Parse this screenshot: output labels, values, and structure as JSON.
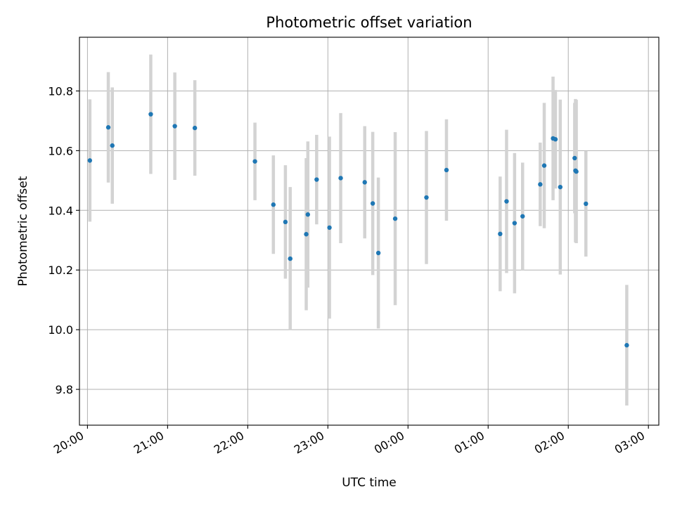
{
  "chart_data": {
    "type": "scatter",
    "title": "Photometric offset variation",
    "xlabel": "UTC time",
    "ylabel": "Photometric offset",
    "x_unit": "hours",
    "xlim": [
      19.9,
      27.13
    ],
    "ylim": [
      9.68,
      10.98
    ],
    "grid": true,
    "x_ticks": [
      {
        "x": 20,
        "label": "20:00"
      },
      {
        "x": 21,
        "label": "21:00"
      },
      {
        "x": 22,
        "label": "22:00"
      },
      {
        "x": 23,
        "label": "23:00"
      },
      {
        "x": 24,
        "label": "00:00"
      },
      {
        "x": 25,
        "label": "01:00"
      },
      {
        "x": 26,
        "label": "02:00"
      },
      {
        "x": 27,
        "label": "03:00"
      }
    ],
    "y_ticks": [
      {
        "y": 9.8,
        "label": "9.8"
      },
      {
        "y": 10.0,
        "label": "10.0"
      },
      {
        "y": 10.2,
        "label": "10.2"
      },
      {
        "y": 10.4,
        "label": "10.4"
      },
      {
        "y": 10.6,
        "label": "10.6"
      },
      {
        "y": 10.8,
        "label": "10.8"
      }
    ],
    "point_color": "#1f77b4",
    "errorbar_color": "#d3d3d3",
    "points": [
      {
        "x": 20.03,
        "y": 10.567,
        "err": 0.205
      },
      {
        "x": 20.26,
        "y": 10.678,
        "err": 0.185
      },
      {
        "x": 20.31,
        "y": 10.617,
        "err": 0.195
      },
      {
        "x": 20.79,
        "y": 10.722,
        "err": 0.2
      },
      {
        "x": 21.09,
        "y": 10.682,
        "err": 0.18
      },
      {
        "x": 21.34,
        "y": 10.676,
        "err": 0.16
      },
      {
        "x": 22.09,
        "y": 10.564,
        "err": 0.13
      },
      {
        "x": 22.32,
        "y": 10.419,
        "err": 0.165
      },
      {
        "x": 22.47,
        "y": 10.361,
        "err": 0.19
      },
      {
        "x": 22.53,
        "y": 10.238,
        "err": 0.24
      },
      {
        "x": 22.73,
        "y": 10.32,
        "err": 0.255
      },
      {
        "x": 22.75,
        "y": 10.386,
        "err": 0.245
      },
      {
        "x": 22.86,
        "y": 10.503,
        "err": 0.15
      },
      {
        "x": 23.02,
        "y": 10.342,
        "err": 0.305
      },
      {
        "x": 23.16,
        "y": 10.508,
        "err": 0.218
      },
      {
        "x": 23.46,
        "y": 10.494,
        "err": 0.188
      },
      {
        "x": 23.56,
        "y": 10.423,
        "err": 0.24
      },
      {
        "x": 23.63,
        "y": 10.257,
        "err": 0.253
      },
      {
        "x": 23.84,
        "y": 10.372,
        "err": 0.29
      },
      {
        "x": 24.23,
        "y": 10.443,
        "err": 0.223
      },
      {
        "x": 24.48,
        "y": 10.535,
        "err": 0.17
      },
      {
        "x": 25.15,
        "y": 10.321,
        "err": 0.192
      },
      {
        "x": 25.23,
        "y": 10.43,
        "err": 0.24
      },
      {
        "x": 25.33,
        "y": 10.357,
        "err": 0.235
      },
      {
        "x": 25.43,
        "y": 10.38,
        "err": 0.18
      },
      {
        "x": 25.65,
        "y": 10.487,
        "err": 0.14
      },
      {
        "x": 25.7,
        "y": 10.55,
        "err": 0.21
      },
      {
        "x": 25.81,
        "y": 10.641,
        "err": 0.207
      },
      {
        "x": 25.84,
        "y": 10.638,
        "err": 0.165
      },
      {
        "x": 25.9,
        "y": 10.478,
        "err": 0.293
      },
      {
        "x": 26.08,
        "y": 10.575,
        "err": 0.185
      },
      {
        "x": 26.09,
        "y": 10.533,
        "err": 0.24
      },
      {
        "x": 26.1,
        "y": 10.53,
        "err": 0.24
      },
      {
        "x": 26.22,
        "y": 10.422,
        "err": 0.177
      },
      {
        "x": 26.73,
        "y": 9.948,
        "err": 0.202
      }
    ]
  }
}
